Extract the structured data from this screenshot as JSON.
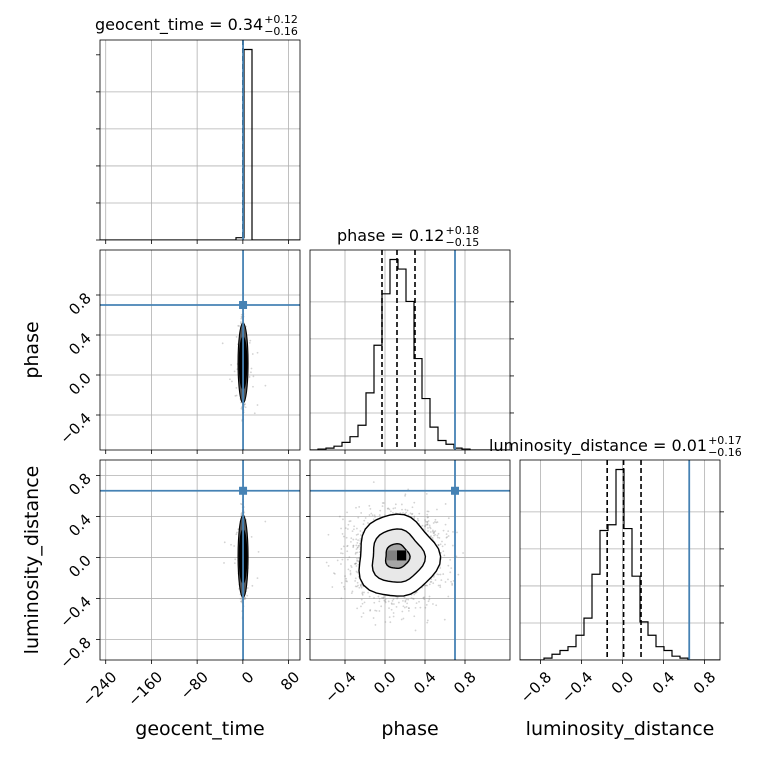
{
  "chart_data": {
    "type": "corner",
    "parameters": [
      {
        "name": "geocent_time",
        "label": "geocent_time",
        "range": [
          -250,
          100
        ],
        "ticks": [
          -240,
          -160,
          -80,
          0,
          80
        ],
        "tick_labels": [
          "−240",
          "−160",
          "−80",
          "0",
          "80"
        ]
      },
      {
        "name": "phase",
        "label": "phase",
        "range": [
          -0.75,
          1.25
        ],
        "ticks": [
          -0.4,
          0.0,
          0.4,
          0.8
        ],
        "tick_labels": [
          "−0.4",
          "0.0",
          "0.4",
          "0.8"
        ]
      },
      {
        "name": "luminosity_distance",
        "label": "luminosity_distance",
        "range": [
          -1.0,
          0.95
        ],
        "ticks": [
          -0.8,
          -0.4,
          0.0,
          0.4,
          0.8
        ],
        "tick_labels": [
          "−0.8",
          "−0.4",
          "0.0",
          "0.4",
          "0.8"
        ]
      }
    ],
    "injection": {
      "geocent_time": 0.34,
      "phase": 0.7,
      "luminosity_distance": 0.65
    },
    "titles": [
      {
        "param": "geocent_time",
        "prefix": "geocent_time = 0.34",
        "plus": "+0.12",
        "minus": "−0.16"
      },
      {
        "param": "phase",
        "prefix": "phase = 0.12",
        "plus": "+0.18",
        "minus": "−0.15"
      },
      {
        "param": "luminosity_distance",
        "prefix": "luminosity_distance = 0.01",
        "plus": "+0.17",
        "minus": "−0.16"
      }
    ],
    "quantiles": {
      "geocent_time": [
        0.18,
        0.34,
        0.46
      ],
      "phase": [
        -0.03,
        0.12,
        0.3
      ],
      "luminosity_distance": [
        -0.15,
        0.01,
        0.18
      ]
    },
    "histograms": {
      "geocent_time": {
        "edges": [
          -250,
          -236,
          -222,
          -208,
          -194,
          -180,
          -166,
          -152,
          -138,
          -124,
          -110,
          -96,
          -82,
          -68,
          -54,
          -40,
          -26,
          -12,
          2,
          16,
          30,
          44,
          58,
          72,
          86,
          100
        ],
        "counts": [
          0,
          0,
          0,
          0,
          0,
          0,
          0,
          0,
          0,
          0,
          0,
          0,
          0,
          0,
          0,
          0,
          0,
          0.012,
          0.995,
          0,
          0,
          0,
          0,
          0,
          0
        ]
      },
      "phase": {
        "edges": [
          -0.75,
          -0.67,
          -0.59,
          -0.51,
          -0.43,
          -0.35,
          -0.27,
          -0.19,
          -0.11,
          -0.03,
          0.05,
          0.13,
          0.21,
          0.29,
          0.37,
          0.45,
          0.53,
          0.61,
          0.69,
          0.77,
          0.85,
          0.93,
          1.01,
          1.09,
          1.17,
          1.25
        ],
        "counts": [
          0,
          0.005,
          0.01,
          0.02,
          0.04,
          0.07,
          0.13,
          0.3,
          0.55,
          0.82,
          1.0,
          0.95,
          0.78,
          0.48,
          0.27,
          0.12,
          0.05,
          0.03,
          0.01,
          0.005,
          0,
          0,
          0,
          0,
          0
        ]
      },
      "luminosity_distance": {
        "edges": [
          -1.0,
          -0.922,
          -0.844,
          -0.766,
          -0.688,
          -0.61,
          -0.532,
          -0.454,
          -0.376,
          -0.298,
          -0.22,
          -0.142,
          -0.064,
          0.014,
          0.092,
          0.17,
          0.248,
          0.326,
          0.404,
          0.482,
          0.56,
          0.638,
          0.716,
          0.794,
          0.872,
          0.95
        ],
        "counts": [
          0,
          0,
          0,
          0.01,
          0.03,
          0.05,
          0.07,
          0.13,
          0.22,
          0.45,
          0.68,
          0.71,
          1.0,
          0.69,
          0.44,
          0.2,
          0.13,
          0.07,
          0.05,
          0.02,
          0.01,
          0,
          0,
          0,
          0
        ]
      }
    },
    "grid": true
  },
  "colors": {
    "injection": "#4682b4",
    "hist": "#000000",
    "grid": "#b0b0b0",
    "contour": "#000000",
    "scatter": "#808080"
  }
}
